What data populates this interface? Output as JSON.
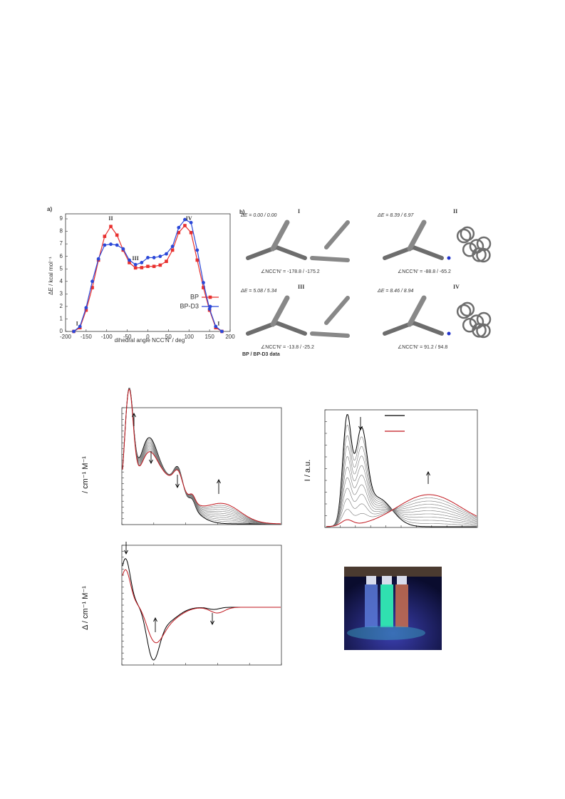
{
  "chart_data": {
    "type": "line",
    "panel_label": "a)",
    "x_label": "dihedral angle NCC'N' / deg",
    "y_label": "ΔE / kcal mol⁻¹",
    "x": [
      -180,
      -165,
      -150,
      -135,
      -120,
      -105,
      -90,
      -75,
      -60,
      -45,
      -30,
      -15,
      0,
      15,
      30,
      45,
      60,
      75,
      90,
      105,
      120,
      135,
      150,
      165,
      180
    ],
    "series": [
      {
        "name": "BP",
        "color": "#e8312f",
        "marker": "square",
        "values": [
          0,
          0.3,
          1.7,
          3.5,
          5.7,
          7.6,
          8.39,
          7.7,
          6.5,
          5.5,
          5.08,
          5.1,
          5.2,
          5.2,
          5.3,
          5.6,
          6.5,
          7.9,
          8.46,
          7.9,
          5.7,
          3.5,
          1.7,
          0.3,
          0
        ]
      },
      {
        "name": "BP-D3",
        "color": "#2b48d8",
        "marker": "circle",
        "values": [
          0,
          0.4,
          1.9,
          4.0,
          5.8,
          6.9,
          6.97,
          6.9,
          6.6,
          5.7,
          5.34,
          5.5,
          5.9,
          5.9,
          6.0,
          6.2,
          6.8,
          8.3,
          8.94,
          8.7,
          6.5,
          3.9,
          1.8,
          0.4,
          0
        ]
      }
    ],
    "xlim": [
      -200,
      200
    ],
    "xticks": [
      -200,
      -150,
      -100,
      -50,
      0,
      50,
      100,
      150,
      200
    ],
    "ylim": [
      0,
      9.4
    ],
    "yticks": [
      0,
      1,
      2,
      3,
      4,
      5,
      6,
      7,
      8,
      9
    ],
    "legend": "lower right",
    "annotations": [
      {
        "text": "I",
        "x": -172,
        "y": 0.6
      },
      {
        "text": "II",
        "x": -90,
        "y": 9.0
      },
      {
        "text": "III",
        "x": -30,
        "y": 5.8
      },
      {
        "text": "IV",
        "x": 100,
        "y": 9.0
      },
      {
        "text": "I",
        "x": 172,
        "y": 0.6
      }
    ]
  },
  "panel_b": {
    "label": "b)",
    "conformers": [
      {
        "numeral": "I",
        "energy": "ΔE = 0.00 / 0.00",
        "angle": "∠NCC'N' = -178.8 / -175.2"
      },
      {
        "numeral": "II",
        "energy": "ΔE = 8.39 / 6.97",
        "angle": "∠NCC'N' = -88.8 / -65.2"
      },
      {
        "numeral": "III",
        "energy": "ΔE = 5.08 / 5.34",
        "angle": "∠NCC'N' = -13.8 / -25.2"
      },
      {
        "numeral": "IV",
        "energy": "ΔE = 8.46 / 8.94",
        "angle": "∠NCC'N' = 91.2 / 94.8"
      }
    ],
    "footer": "BP / BP-D3 data"
  },
  "spectra": {
    "absorption_ylabel": "/ cm⁻¹ M⁻¹",
    "emission_ylabel": "I / a.u.",
    "difference_ylabel": "Δ  / cm⁻¹ M⁻¹"
  }
}
